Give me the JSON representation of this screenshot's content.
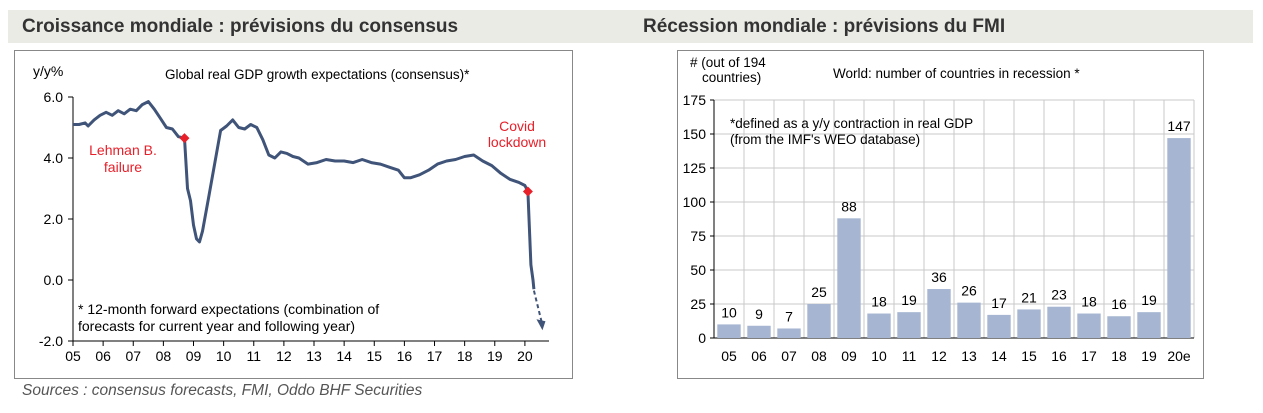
{
  "headers": {
    "left": "Croissance mondiale : prévisions du consensus",
    "right": "Récession mondiale : prévisions du FMI"
  },
  "source": "Sources : consensus forecasts, FMI, Oddo BHF Securities",
  "colors": {
    "line": "#3f5478",
    "marker": "#e8202a",
    "annotation": "#e8202a",
    "bar": "#a6b6d2",
    "header_bg": "#ebebe6"
  },
  "chart_data": [
    {
      "type": "line",
      "title": "Global real GDP growth expectations (consensus)*",
      "ylabel": "y/y%",
      "ylim": [
        -2.0,
        6.0
      ],
      "yticks": [
        "6.0",
        "4.0",
        "2.0",
        "0.0",
        "-2.0"
      ],
      "xlim": [
        2005.0,
        2020.8
      ],
      "xticks": [
        "05",
        "06",
        "07",
        "08",
        "09",
        "10",
        "11",
        "12",
        "13",
        "14",
        "15",
        "16",
        "17",
        "18",
        "19",
        "20"
      ],
      "grid": false,
      "footnote": [
        "* 12-month forward expectations (combination of",
        "forecasts for current year and following year)"
      ],
      "annotations": [
        {
          "text": [
            "Lehman B.",
            "failure"
          ],
          "x": 2008.7,
          "y": 4.65
        },
        {
          "text": [
            "Covid",
            "lockdown"
          ],
          "x": 2020.2,
          "y": 2.9
        }
      ],
      "series": [
        {
          "x": [
            2005.0,
            2005.2,
            2005.4,
            2005.5,
            2005.7,
            2005.9,
            2006.1,
            2006.3,
            2006.5,
            2006.7,
            2006.9,
            2007.1,
            2007.3,
            2007.5,
            2007.7,
            2007.9,
            2008.1,
            2008.3,
            2008.5,
            2008.7,
            2008.8,
            2008.9,
            2009.0,
            2009.1,
            2009.2,
            2009.3,
            2009.5,
            2009.7,
            2009.9,
            2010.1,
            2010.3,
            2010.5,
            2010.7,
            2010.9,
            2011.1,
            2011.3,
            2011.5,
            2011.7,
            2011.9,
            2012.1,
            2012.3,
            2012.5,
            2012.8,
            2013.1,
            2013.4,
            2013.7,
            2014.0,
            2014.3,
            2014.6,
            2014.9,
            2015.2,
            2015.5,
            2015.8,
            2016.0,
            2016.2,
            2016.5,
            2016.8,
            2017.1,
            2017.4,
            2017.7,
            2018.0,
            2018.3,
            2018.6,
            2018.9,
            2019.2,
            2019.5,
            2019.8,
            2020.0,
            2020.1,
            2020.2,
            2020.27,
            2020.3
          ],
          "y": [
            5.1,
            5.1,
            5.15,
            5.05,
            5.25,
            5.4,
            5.5,
            5.4,
            5.55,
            5.45,
            5.6,
            5.55,
            5.75,
            5.85,
            5.6,
            5.3,
            5.0,
            4.95,
            4.7,
            4.65,
            3.0,
            2.6,
            1.8,
            1.35,
            1.25,
            1.6,
            2.7,
            3.8,
            4.9,
            5.05,
            5.25,
            5.0,
            4.95,
            5.1,
            5.0,
            4.6,
            4.1,
            4.0,
            4.2,
            4.15,
            4.05,
            4.0,
            3.8,
            3.85,
            3.95,
            3.9,
            3.9,
            3.85,
            3.95,
            3.85,
            3.8,
            3.7,
            3.6,
            3.35,
            3.35,
            3.45,
            3.6,
            3.8,
            3.9,
            3.95,
            4.05,
            4.1,
            3.9,
            3.75,
            3.5,
            3.3,
            3.2,
            3.1,
            2.9,
            0.5,
            0.0,
            -0.3
          ]
        }
      ],
      "forecast_arrow": {
        "from": [
          2020.3,
          -0.35
        ],
        "to": [
          2020.55,
          -1.55
        ]
      },
      "markers": [
        {
          "x": 2008.7,
          "y": 4.65
        },
        {
          "x": 2020.1,
          "y": 2.9
        }
      ]
    },
    {
      "type": "bar",
      "title": "World: number of countries in recession *",
      "ylabel": [
        "# (out of 194",
        "countries)"
      ],
      "ylim": [
        0,
        175
      ],
      "yticks": [
        "175",
        "150",
        "125",
        "100",
        "75",
        "50",
        "25",
        "0"
      ],
      "grid": true,
      "note": [
        "*defined as a y/y contraction in real GDP",
        "(from  the IMF's WEO database)"
      ],
      "categories": [
        "05",
        "06",
        "07",
        "08",
        "09",
        "10",
        "11",
        "12",
        "13",
        "14",
        "15",
        "16",
        "17",
        "18",
        "19",
        "20e"
      ],
      "values": [
        10,
        9,
        7,
        25,
        88,
        18,
        19,
        36,
        26,
        17,
        21,
        23,
        18,
        16,
        19,
        147
      ]
    }
  ]
}
